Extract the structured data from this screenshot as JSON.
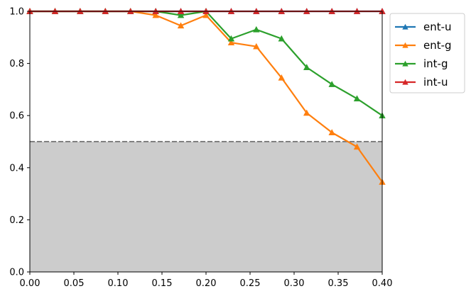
{
  "chart_data": {
    "type": "line",
    "title": "",
    "xlabel": "",
    "ylabel": "",
    "xlim": [
      0.0,
      0.4
    ],
    "ylim": [
      0.0,
      1.0
    ],
    "grid": false,
    "legend_position": "outside-top-right",
    "x_ticks": [
      "0.00",
      "0.05",
      "0.10",
      "0.15",
      "0.20",
      "0.25",
      "0.30",
      "0.35",
      "0.40"
    ],
    "y_ticks": [
      "0.0",
      "0.2",
      "0.4",
      "0.6",
      "0.8",
      "1.0"
    ],
    "threshold": 0.5,
    "threshold_color": "#808080",
    "shaded_region_color": "#cccccc",
    "x": [
      0.0,
      0.0286,
      0.0571,
      0.0857,
      0.1143,
      0.1429,
      0.1714,
      0.2,
      0.2286,
      0.2571,
      0.2857,
      0.3143,
      0.3429,
      0.3714,
      0.4
    ],
    "series": [
      {
        "name": "ent-u",
        "color": "#1f77b4",
        "marker": "triangle",
        "values": [
          1.0,
          1.0,
          1.0,
          1.0,
          1.0,
          1.0,
          1.0,
          1.0,
          1.0,
          1.0,
          1.0,
          1.0,
          1.0,
          1.0,
          1.0
        ]
      },
      {
        "name": "ent-g",
        "color": "#ff7f0e",
        "marker": "triangle",
        "values": [
          1.0,
          1.0,
          1.0,
          1.0,
          1.0,
          0.985,
          0.945,
          0.985,
          0.88,
          0.865,
          0.745,
          0.61,
          0.535,
          0.48,
          0.345
        ]
      },
      {
        "name": "int-g",
        "color": "#2ca02c",
        "marker": "triangle",
        "values": [
          1.0,
          1.0,
          1.0,
          1.0,
          1.0,
          1.0,
          0.985,
          1.0,
          0.895,
          0.93,
          0.895,
          0.785,
          0.72,
          0.665,
          0.6
        ]
      },
      {
        "name": "int-u",
        "color": "#d62728",
        "marker": "triangle",
        "values": [
          1.0,
          1.0,
          1.0,
          1.0,
          1.0,
          1.0,
          1.0,
          1.0,
          1.0,
          1.0,
          1.0,
          1.0,
          1.0,
          1.0,
          1.0
        ]
      }
    ]
  }
}
